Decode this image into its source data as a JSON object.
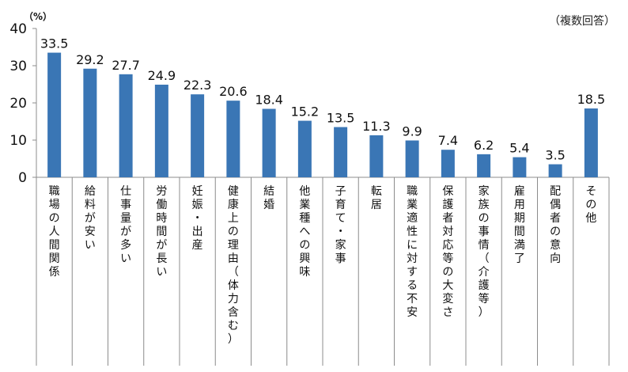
{
  "note": "（複数回答）",
  "chart_data": {
    "type": "bar",
    "unit_label": "（%）",
    "ylim": [
      0,
      40
    ],
    "yticks": [
      0,
      10,
      20,
      30,
      40
    ],
    "grid": false,
    "bar_color": "#3a76b5",
    "categories": [
      "職場の人間関係",
      "給料が安い",
      "仕事量が多い",
      "労働時間が長い",
      "妊娠・出産",
      "健康上の理由（体力含む）",
      "結婚",
      "他業種への興味",
      "子育て・家事",
      "転居",
      "職業適性に対する不安",
      "保護者対応等の大変さ",
      "家族の事情（介護等）",
      "雇用期間満了",
      "配偶者の意向",
      "その他"
    ],
    "values": [
      33.5,
      29.2,
      27.7,
      24.9,
      22.3,
      20.6,
      18.4,
      15.2,
      13.5,
      11.3,
      9.9,
      7.4,
      6.2,
      5.4,
      3.5,
      18.5
    ],
    "data_labels": [
      "33.5",
      "29.2",
      "27.7",
      "24.9",
      "22.3",
      "20.6",
      "18.4",
      "15.2",
      "13.5",
      "11.3",
      "9.9",
      "7.4",
      "6.2",
      "5.4",
      "3.5",
      "18.5"
    ]
  }
}
